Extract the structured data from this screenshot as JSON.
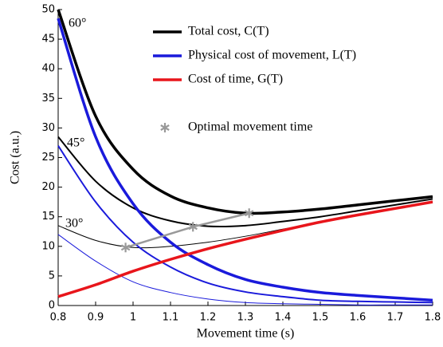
{
  "chart_data": {
    "type": "line",
    "xlabel": "Movement time (s)",
    "ylabel": "Cost (a.u.)",
    "x": [
      0.8,
      0.9,
      1.0,
      1.1,
      1.2,
      1.3,
      1.4,
      1.5,
      1.6,
      1.7,
      1.8
    ],
    "xlim": [
      0.8,
      1.8
    ],
    "xticks": [
      0.8,
      0.9,
      1,
      1.1,
      1.2,
      1.3,
      1.4,
      1.5,
      1.6,
      1.7,
      1.8
    ],
    "ylim": [
      0,
      50
    ],
    "yticks": [
      0,
      5,
      10,
      15,
      20,
      25,
      30,
      35,
      40,
      45,
      50
    ],
    "annotations": [
      "60°",
      "45°",
      "30°"
    ],
    "series": [
      {
        "name": "Total cost, C(T)",
        "color": "#000000",
        "lines": [
          [
            50,
            32,
            23,
            18.5,
            16.5,
            15.6,
            15.8,
            16.3,
            17,
            17.7,
            18.4
          ],
          [
            28.5,
            21,
            16.5,
            14.3,
            13.4,
            13.5,
            14.2,
            15,
            16,
            17,
            18
          ],
          [
            13.5,
            11,
            9.8,
            10,
            10.7,
            11.7,
            12.9,
            14.1,
            15.3,
            16.4,
            17.6
          ]
        ]
      },
      {
        "name": "Physical cost of movement, L(T)",
        "color": "#1a1adb",
        "lines": [
          [
            48.5,
            28.5,
            17.2,
            10.7,
            6.9,
            4.4,
            3.1,
            2.2,
            1.7,
            1.3,
            0.9
          ],
          [
            27,
            17.5,
            10.7,
            6.5,
            3.8,
            2.3,
            1.5,
            0.9,
            0.7,
            0.6,
            0.5
          ],
          [
            12,
            7.5,
            4,
            2.2,
            1.1,
            0.5,
            0.3,
            0.2,
            0.1,
            0.1,
            0.1
          ]
        ]
      },
      {
        "name": "Cost of time, G(T)",
        "color": "#e8151b",
        "lines": [
          [
            1.5,
            3.5,
            5.8,
            7.8,
            9.6,
            11.2,
            12.7,
            14.1,
            15.3,
            16.4,
            17.5
          ]
        ]
      }
    ],
    "optimal": {
      "name": "Optimal movement time",
      "color": "#999999",
      "x": [
        0.98,
        1.16,
        1.31
      ],
      "values": [
        9.8,
        13.3,
        15.6
      ]
    }
  }
}
